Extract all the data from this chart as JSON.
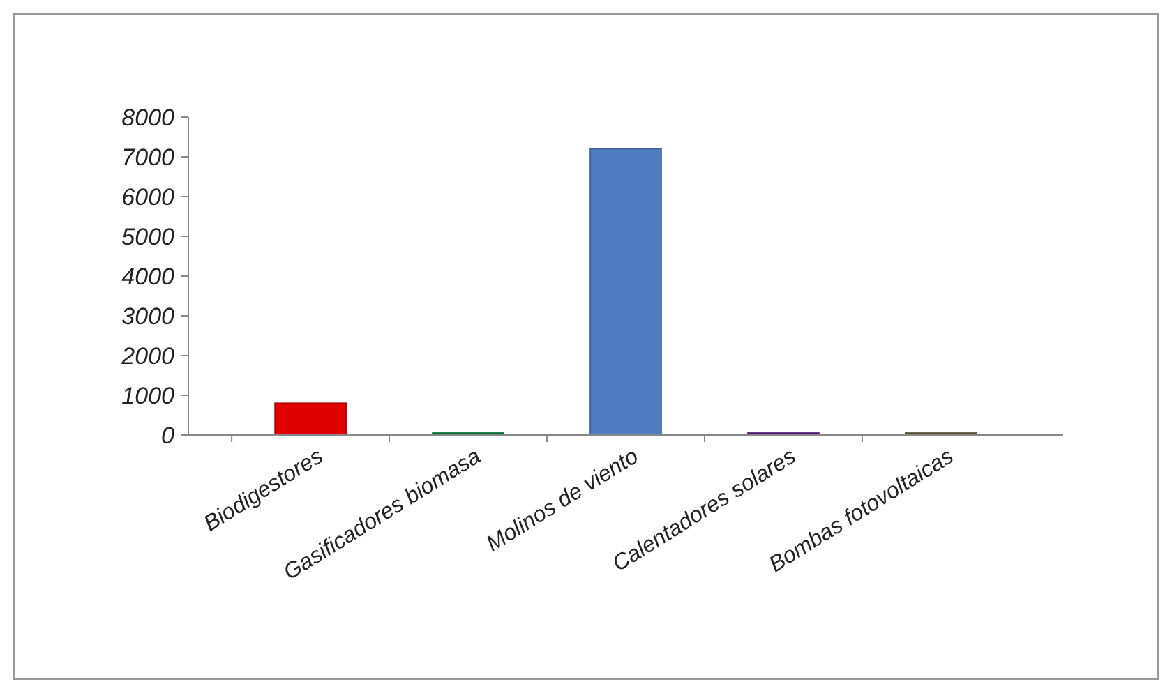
{
  "chart_data": {
    "type": "bar",
    "categories": [
      "Biodigestores",
      "Gasificadores biomasa",
      "Molinos de viento",
      "Calentadores solares",
      "Bombas fotovoltaicas"
    ],
    "values": [
      800,
      50,
      7200,
      50,
      50
    ],
    "colors": [
      "#e00000",
      "#00873a",
      "#4f7dc0",
      "#5a1e8c",
      "#6b6040"
    ],
    "ylim": [
      0,
      8000
    ],
    "yticks": [
      0,
      1000,
      2000,
      3000,
      4000,
      5000,
      6000,
      7000,
      8000
    ],
    "grid": false
  }
}
